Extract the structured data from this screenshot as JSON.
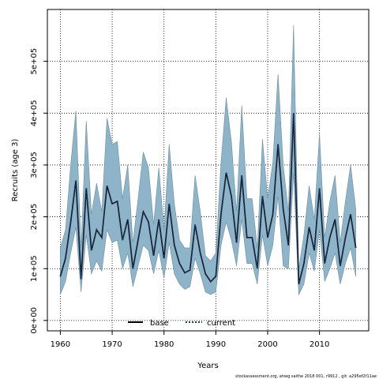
{
  "chart_data": {
    "type": "line",
    "xlabel": "Years",
    "ylabel": "Recruits (age 3)",
    "xlim": [
      1957.5,
      2019.5
    ],
    "ylim": [
      -20000,
      600000
    ],
    "xticks": [
      1960,
      1970,
      1980,
      1990,
      2000,
      2010
    ],
    "yticks": [
      0,
      100000,
      200000,
      300000,
      400000,
      500000
    ],
    "ytick_labels": [
      "0e+00",
      "1e+05",
      "2e+05",
      "3e+05",
      "4e+05",
      "5e+05"
    ],
    "grid": true,
    "legend": {
      "placement": "bottom-center",
      "entries": [
        "base",
        "current"
      ]
    },
    "footer": "stockassessment.org, ahwg saithe 2018 001, r9912 , git: a295ef2f11ae",
    "x": [
      1960,
      1961,
      1962,
      1963,
      1964,
      1965,
      1966,
      1967,
      1968,
      1969,
      1970,
      1971,
      1972,
      1973,
      1974,
      1975,
      1976,
      1977,
      1978,
      1979,
      1980,
      1981,
      1982,
      1983,
      1984,
      1985,
      1986,
      1987,
      1988,
      1989,
      1990,
      1991,
      1992,
      1993,
      1994,
      1995,
      1996,
      1997,
      1998,
      1999,
      2000,
      2001,
      2002,
      2003,
      2004,
      2005,
      2006,
      2007,
      2008,
      2009,
      2010,
      2011,
      2012,
      2013,
      2014,
      2015,
      2016,
      2017
    ],
    "series": [
      {
        "name": "base",
        "color": "#000000",
        "style": "solid",
        "values": [
          85000,
          120000,
          190000,
          270000,
          80000,
          255000,
          135000,
          175000,
          160000,
          260000,
          225000,
          230000,
          155000,
          195000,
          100000,
          155000,
          210000,
          190000,
          125000,
          195000,
          120000,
          225000,
          145000,
          110000,
          92000,
          97000,
          185000,
          130000,
          90000,
          75000,
          85000,
          205000,
          285000,
          240000,
          150000,
          280000,
          160000,
          160000,
          100000,
          240000,
          160000,
          205000,
          340000,
          215000,
          145000,
          400000,
          70000,
          110000,
          180000,
          135000,
          255000,
          110000,
          160000,
          195000,
          105000,
          160000,
          205000,
          140000
        ]
      },
      {
        "name": "current",
        "color": "#1f3a5f",
        "style": "dotted",
        "values": [
          85000,
          120000,
          190000,
          270000,
          80000,
          255000,
          135000,
          175000,
          160000,
          260000,
          225000,
          230000,
          155000,
          195000,
          100000,
          155000,
          210000,
          190000,
          125000,
          195000,
          120000,
          225000,
          145000,
          110000,
          92000,
          97000,
          185000,
          130000,
          90000,
          75000,
          85000,
          205000,
          285000,
          240000,
          150000,
          280000,
          160000,
          160000,
          100000,
          240000,
          160000,
          205000,
          340000,
          215000,
          145000,
          400000,
          70000,
          110000,
          180000,
          135000,
          255000,
          110000,
          160000,
          195000,
          105000,
          160000,
          205000,
          140000
        ]
      }
    ],
    "confidence_band": {
      "color": "#8db4c8",
      "lower": [
        50000,
        75000,
        130000,
        180000,
        55000,
        165000,
        90000,
        115000,
        95000,
        175000,
        150000,
        155000,
        100000,
        130000,
        65000,
        105000,
        145000,
        135000,
        90000,
        135000,
        82000,
        150000,
        90000,
        70000,
        60000,
        65000,
        120000,
        90000,
        55000,
        50000,
        55000,
        145000,
        190000,
        155000,
        105000,
        195000,
        110000,
        110000,
        70000,
        165000,
        105000,
        145000,
        240000,
        105000,
        100000,
        285000,
        50000,
        70000,
        130000,
        95000,
        175000,
        75000,
        100000,
        130000,
        70000,
        110000,
        140000,
        85000
      ],
      "upper": [
        140000,
        175000,
        300000,
        405000,
        140000,
        385000,
        205000,
        265000,
        210000,
        390000,
        340000,
        345000,
        235000,
        300000,
        150000,
        235000,
        325000,
        295000,
        185000,
        295000,
        175000,
        340000,
        225000,
        155000,
        140000,
        140000,
        280000,
        210000,
        125000,
        115000,
        130000,
        305000,
        430000,
        345000,
        210000,
        415000,
        235000,
        235000,
        140000,
        350000,
        235000,
        305000,
        475000,
        300000,
        210000,
        570000,
        100000,
        165000,
        260000,
        195000,
        360000,
        160000,
        230000,
        280000,
        150000,
        230000,
        300000,
        215000
      ]
    }
  }
}
